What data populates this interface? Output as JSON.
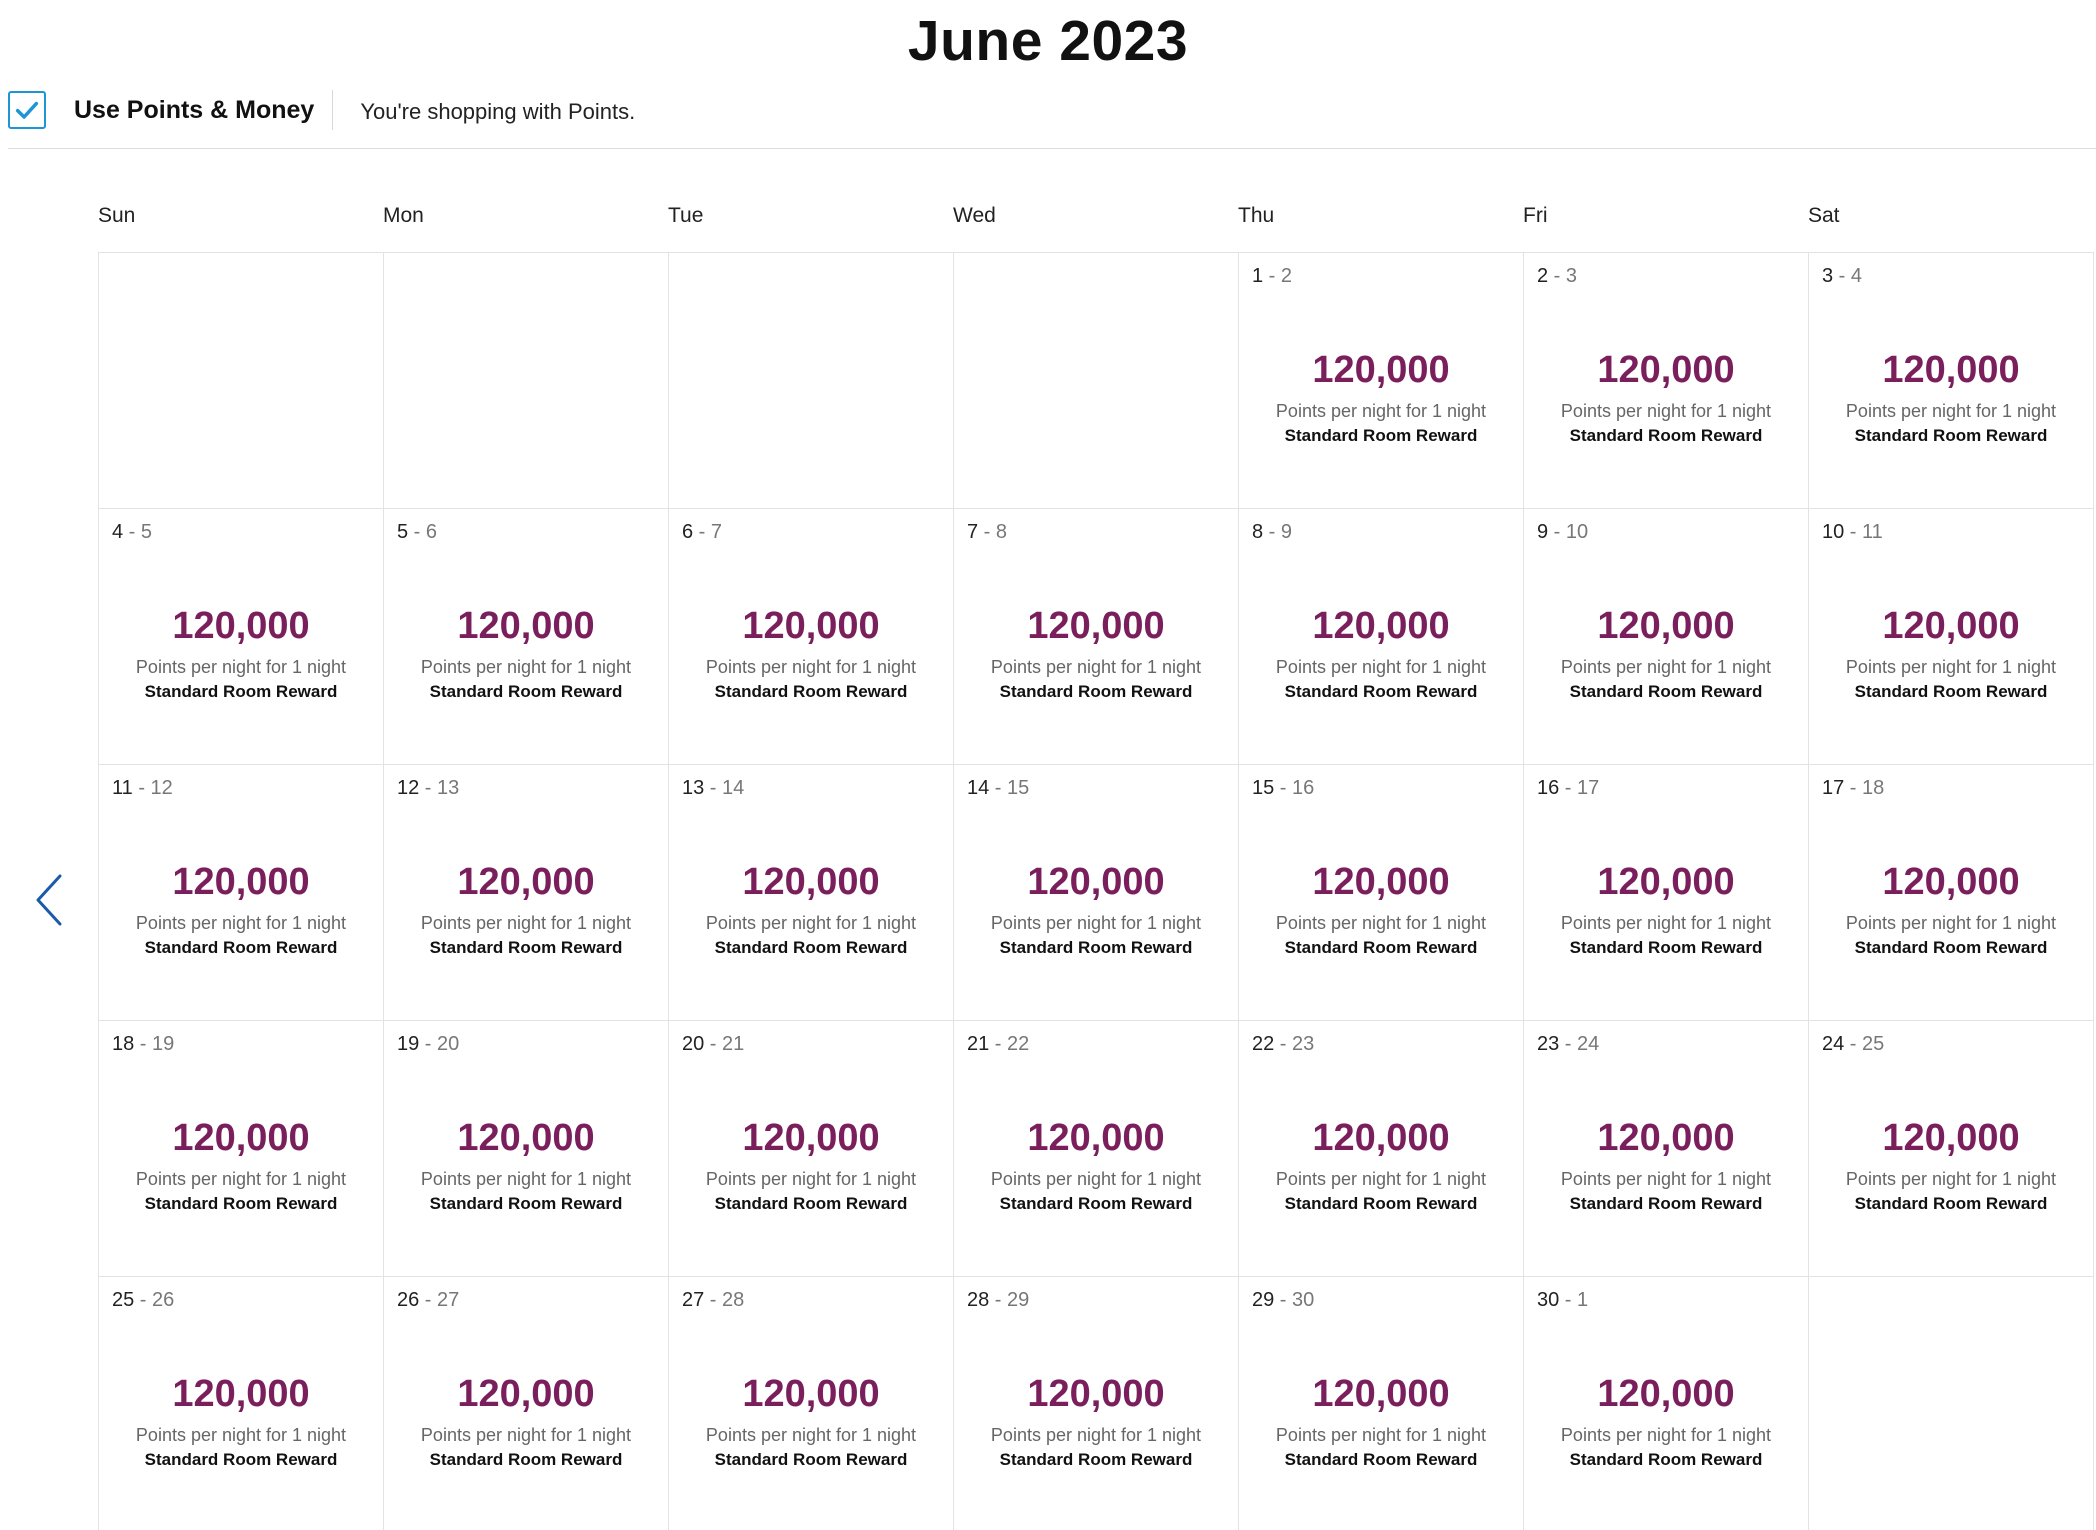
{
  "month_title": "June 2023",
  "points_toggle": {
    "checked": true,
    "label": "Use Points & Money",
    "note": "You're shopping with Points."
  },
  "navigation": {
    "prev_icon": "chevron-left-icon"
  },
  "colors": {
    "points": "#7a1f5c",
    "checkbox": "#1e95d4",
    "arrow": "#1a5aa8"
  },
  "weekdays": [
    "Sun",
    "Mon",
    "Tue",
    "Wed",
    "Thu",
    "Fri",
    "Sat"
  ],
  "calendar": {
    "leading_empty_cells": 4,
    "trailing_empty_cells": 1,
    "points_desc": "Points per night for 1 night",
    "room_type": "Standard Room Reward",
    "days": [
      {
        "start": "1",
        "end": "2",
        "points": "120,000"
      },
      {
        "start": "2",
        "end": "3",
        "points": "120,000"
      },
      {
        "start": "3",
        "end": "4",
        "points": "120,000"
      },
      {
        "start": "4",
        "end": "5",
        "points": "120,000"
      },
      {
        "start": "5",
        "end": "6",
        "points": "120,000"
      },
      {
        "start": "6",
        "end": "7",
        "points": "120,000"
      },
      {
        "start": "7",
        "end": "8",
        "points": "120,000"
      },
      {
        "start": "8",
        "end": "9",
        "points": "120,000"
      },
      {
        "start": "9",
        "end": "10",
        "points": "120,000"
      },
      {
        "start": "10",
        "end": "11",
        "points": "120,000"
      },
      {
        "start": "11",
        "end": "12",
        "points": "120,000"
      },
      {
        "start": "12",
        "end": "13",
        "points": "120,000"
      },
      {
        "start": "13",
        "end": "14",
        "points": "120,000"
      },
      {
        "start": "14",
        "end": "15",
        "points": "120,000"
      },
      {
        "start": "15",
        "end": "16",
        "points": "120,000"
      },
      {
        "start": "16",
        "end": "17",
        "points": "120,000"
      },
      {
        "start": "17",
        "end": "18",
        "points": "120,000"
      },
      {
        "start": "18",
        "end": "19",
        "points": "120,000"
      },
      {
        "start": "19",
        "end": "20",
        "points": "120,000"
      },
      {
        "start": "20",
        "end": "21",
        "points": "120,000"
      },
      {
        "start": "21",
        "end": "22",
        "points": "120,000"
      },
      {
        "start": "22",
        "end": "23",
        "points": "120,000"
      },
      {
        "start": "23",
        "end": "24",
        "points": "120,000"
      },
      {
        "start": "24",
        "end": "25",
        "points": "120,000"
      },
      {
        "start": "25",
        "end": "26",
        "points": "120,000"
      },
      {
        "start": "26",
        "end": "27",
        "points": "120,000"
      },
      {
        "start": "27",
        "end": "28",
        "points": "120,000"
      },
      {
        "start": "28",
        "end": "29",
        "points": "120,000"
      },
      {
        "start": "29",
        "end": "30",
        "points": "120,000"
      },
      {
        "start": "30",
        "end": "1",
        "points": "120,000"
      }
    ]
  }
}
